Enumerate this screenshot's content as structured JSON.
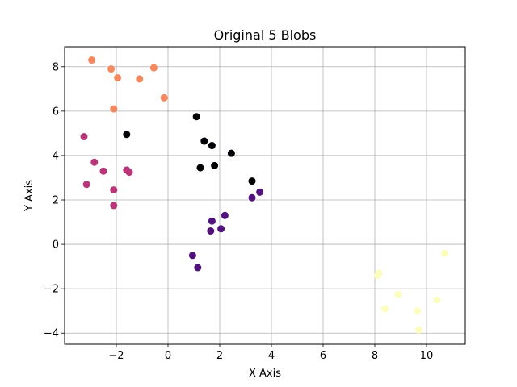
{
  "chart_data": {
    "type": "scatter",
    "title": "Original 5 Blobs",
    "xlabel": "X Axis",
    "ylabel": "Y Axis",
    "xlim": [
      -4.0,
      11.5
    ],
    "ylim": [
      -4.5,
      8.9
    ],
    "xticks": [
      -2,
      0,
      2,
      4,
      6,
      8,
      10
    ],
    "yticks": [
      -4,
      -2,
      0,
      2,
      4,
      6,
      8
    ],
    "grid": true,
    "series": [
      {
        "color": "#f4895f",
        "points": [
          [
            -2.95,
            8.3
          ],
          [
            -2.2,
            7.9
          ],
          [
            -1.95,
            7.5
          ],
          [
            -0.55,
            7.95
          ],
          [
            -1.1,
            7.45
          ],
          [
            -0.15,
            6.6
          ],
          [
            -2.1,
            6.1
          ]
        ]
      },
      {
        "color": "#000004",
        "points": [
          [
            1.1,
            5.75
          ],
          [
            -1.6,
            4.95
          ],
          [
            1.4,
            4.65
          ],
          [
            1.7,
            4.45
          ],
          [
            2.45,
            4.1
          ],
          [
            1.25,
            3.45
          ],
          [
            1.8,
            3.55
          ],
          [
            3.25,
            2.85
          ]
        ]
      },
      {
        "color": "#b73779",
        "points": [
          [
            -3.25,
            4.85
          ],
          [
            -2.85,
            3.7
          ],
          [
            -2.5,
            3.3
          ],
          [
            -1.6,
            3.35
          ],
          [
            -1.5,
            3.25
          ],
          [
            -3.15,
            2.7
          ],
          [
            -2.1,
            2.45
          ],
          [
            -2.1,
            1.75
          ]
        ]
      },
      {
        "color": "#51127c",
        "points": [
          [
            3.25,
            2.1
          ],
          [
            3.55,
            2.35
          ],
          [
            2.2,
            1.3
          ],
          [
            1.7,
            1.05
          ],
          [
            1.65,
            0.6
          ],
          [
            2.05,
            0.7
          ],
          [
            0.95,
            -0.5
          ],
          [
            1.15,
            -1.05
          ]
        ]
      },
      {
        "color": "#fcfdbf",
        "points": [
          [
            8.15,
            -1.3
          ],
          [
            8.1,
            -1.4
          ],
          [
            10.7,
            -0.4
          ],
          [
            8.9,
            -2.25
          ],
          [
            10.4,
            -2.5
          ],
          [
            8.4,
            -2.9
          ],
          [
            9.65,
            -3.0
          ],
          [
            9.7,
            -3.85
          ]
        ]
      }
    ]
  }
}
